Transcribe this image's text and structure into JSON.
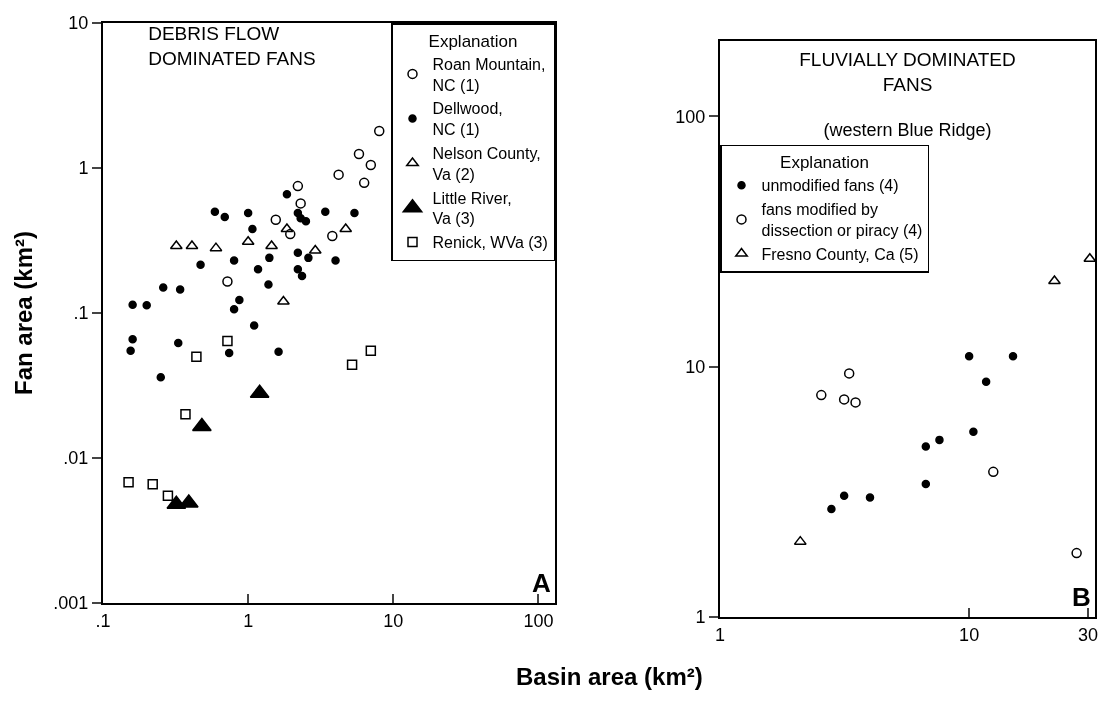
{
  "chart_data": [
    {
      "type": "scatter",
      "title": "DEBRIS FLOW\nDOMINATED FANS",
      "xlabel": "Basin area (km²)",
      "ylabel": "Fan area (km²)",
      "legend_title": "Explanation",
      "legend": "top right",
      "log": "xy",
      "grid": false,
      "xlim": [
        0.1,
        130
      ],
      "ylim": [
        0.001,
        10
      ],
      "xticks": [
        {
          "value": 0.1,
          "label": ".1"
        },
        1,
        10,
        100
      ],
      "yticks": [
        {
          "value": 0.001,
          "label": ".001"
        },
        {
          "value": 0.01,
          "label": ".01"
        },
        {
          "value": 0.1,
          "label": ".1"
        },
        1,
        10
      ],
      "annotations": [
        "A"
      ],
      "series": [
        {
          "name": "Roan Mountain,\nNC (1)",
          "color": "#000000",
          "marker": "circle-open",
          "x": [
            8,
            5.8,
            7,
            6.3,
            4.2,
            2.2,
            2.3,
            1.55,
            1.95,
            3.8,
            0.72
          ],
          "values": [
            1.8,
            1.25,
            1.05,
            0.79,
            0.9,
            0.75,
            0.57,
            0.44,
            0.35,
            0.34,
            0.165
          ]
        },
        {
          "name": "Dellwood,\nNC (1)",
          "color": "#000000",
          "marker": "circle",
          "x": [
            1.85,
            2.2,
            2.3,
            2.5,
            3.4,
            5.4,
            0.59,
            0.69,
            1.0,
            1.07,
            2.2,
            2.6,
            1.4,
            0.8,
            0.47,
            4.0,
            1.17,
            2.2,
            2.35,
            1.38,
            0.26,
            0.34,
            0.16,
            0.2,
            0.87,
            0.8,
            1.1,
            0.16,
            0.155,
            0.33,
            0.74,
            1.62,
            0.25
          ],
          "values": [
            0.66,
            0.49,
            0.45,
            0.43,
            0.5,
            0.49,
            0.5,
            0.46,
            0.49,
            0.38,
            0.26,
            0.24,
            0.24,
            0.23,
            0.215,
            0.23,
            0.2,
            0.2,
            0.18,
            0.157,
            0.15,
            0.145,
            0.114,
            0.113,
            0.123,
            0.106,
            0.082,
            0.066,
            0.055,
            0.062,
            0.053,
            0.054,
            0.036
          ]
        },
        {
          "name": "Nelson County,\nVa (2)",
          "color": "#000000",
          "marker": "triangle-open",
          "x": [
            0.32,
            0.41,
            0.6,
            1.0,
            1.45,
            1.85,
            2.9,
            4.7,
            1.75
          ],
          "values": [
            0.29,
            0.29,
            0.28,
            0.31,
            0.29,
            0.38,
            0.27,
            0.38,
            0.12
          ]
        },
        {
          "name": "Little River,\nVa (3)",
          "color": "#000000",
          "marker": "triangle",
          "x": [
            1.2,
            0.48,
            0.32,
            0.39
          ],
          "values": [
            0.028,
            0.0165,
            0.0048,
            0.0049
          ]
        },
        {
          "name": "Renick, WVa (3)",
          "color": "#000000",
          "marker": "square-open",
          "x": [
            0.72,
            0.44,
            5.2,
            7,
            0.37,
            0.15,
            0.22,
            0.28
          ],
          "values": [
            0.064,
            0.05,
            0.044,
            0.055,
            0.02,
            0.0068,
            0.0066,
            0.0055
          ]
        }
      ]
    },
    {
      "type": "scatter",
      "title": "FLUVIALLY DOMINATED\nFANS",
      "subtitle": "(western Blue Ridge)",
      "legend_title": "Explanation",
      "legend": "top left",
      "log": "xy",
      "grid": false,
      "xlim": [
        1,
        32
      ],
      "ylim": [
        1,
        200
      ],
      "xticks": [
        1,
        10,
        30
      ],
      "yticks": [
        1,
        10,
        100
      ],
      "annotations": [
        "B"
      ],
      "series": [
        {
          "name": "unmodified fans (4)",
          "color": "#000000",
          "marker": "circle",
          "x": [
            10,
            15,
            11.7,
            10.4,
            7.6,
            6.7,
            6.7,
            3.15,
            4.0,
            2.8
          ],
          "values": [
            11,
            11,
            8.7,
            5.5,
            5.1,
            4.8,
            3.4,
            3.05,
            3.0,
            2.7
          ]
        },
        {
          "name": "fans modified by\ndissection or piracy (4)",
          "color": "#000000",
          "marker": "circle-open",
          "x": [
            3.3,
            2.55,
            3.15,
            3.5,
            12.5,
            27
          ],
          "values": [
            9.4,
            7.7,
            7.4,
            7.2,
            3.8,
            1.8
          ]
        },
        {
          "name": "Fresno County, Ca (5)",
          "color": "#000000",
          "marker": "triangle-open",
          "x": [
            2.1,
            22,
            30.5
          ],
          "values": [
            2.0,
            22,
            27
          ]
        }
      ]
    }
  ]
}
